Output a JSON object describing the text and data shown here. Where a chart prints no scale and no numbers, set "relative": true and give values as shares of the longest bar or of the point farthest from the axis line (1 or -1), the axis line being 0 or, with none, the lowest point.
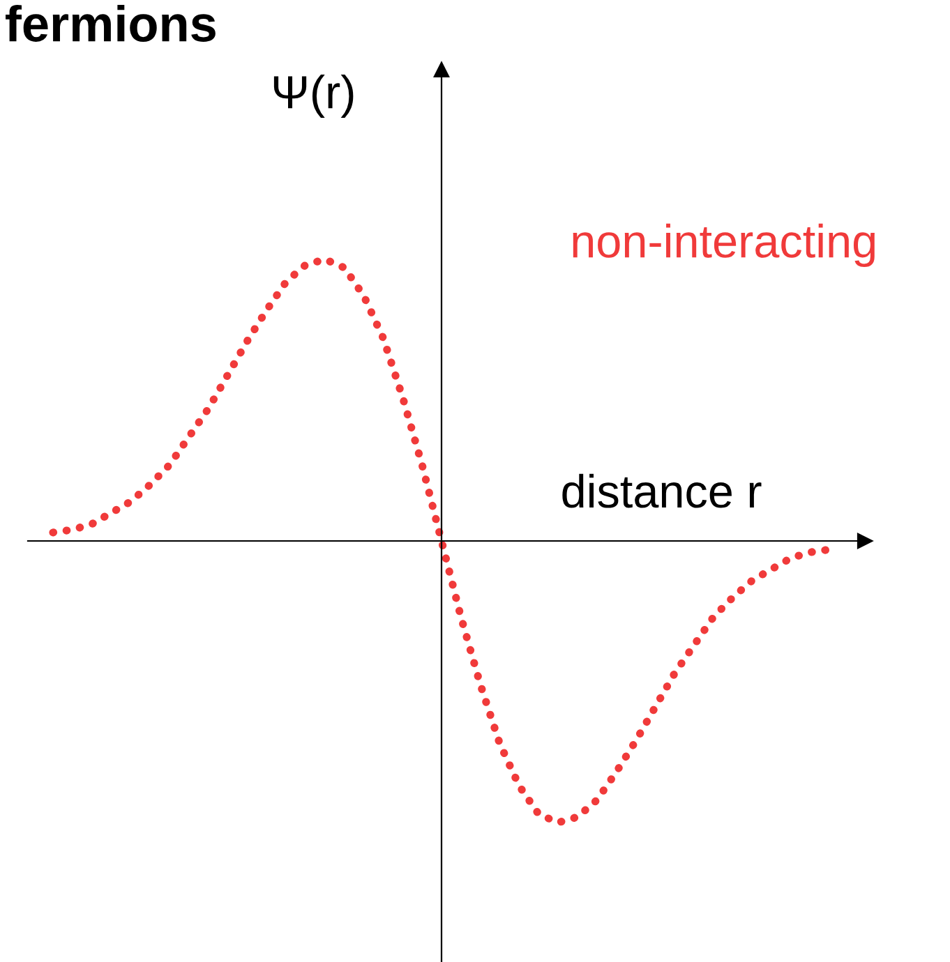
{
  "chart_data": {
    "type": "line",
    "title": "fermions",
    "xlabel": "distance r",
    "ylabel": "Ψ(r)",
    "annotations": [
      "non-interacting"
    ],
    "relative": true,
    "tick_labels": false,
    "line_style": "dotted",
    "marker": "none",
    "legend": false,
    "categories": [
      null,
      null,
      null,
      null,
      null,
      null,
      null,
      null,
      null,
      null,
      null,
      null,
      null,
      null,
      null,
      null,
      null,
      null,
      null,
      null,
      null,
      null,
      null,
      null,
      null,
      null,
      null,
      null,
      null,
      null,
      null,
      null,
      null,
      null,
      null,
      null,
      null,
      null,
      null,
      null,
      null
    ],
    "series": [
      {
        "color": "#f03a3a",
        "values": [
          0.03,
          0.04,
          0.06,
          0.1,
          0.14,
          0.2,
          0.27,
          0.37,
          0.47,
          0.59,
          0.71,
          0.82,
          0.92,
          0.98,
          1.0,
          0.97,
          0.87,
          0.72,
          0.51,
          0.27,
          0,
          -0.27,
          -0.51,
          -0.72,
          -0.87,
          -0.97,
          -1.0,
          -0.98,
          -0.92,
          -0.82,
          -0.71,
          -0.59,
          -0.47,
          -0.37,
          -0.27,
          -0.2,
          -0.14,
          -0.1,
          -0.06,
          -0.04,
          -0.03
        ]
      }
    ]
  }
}
